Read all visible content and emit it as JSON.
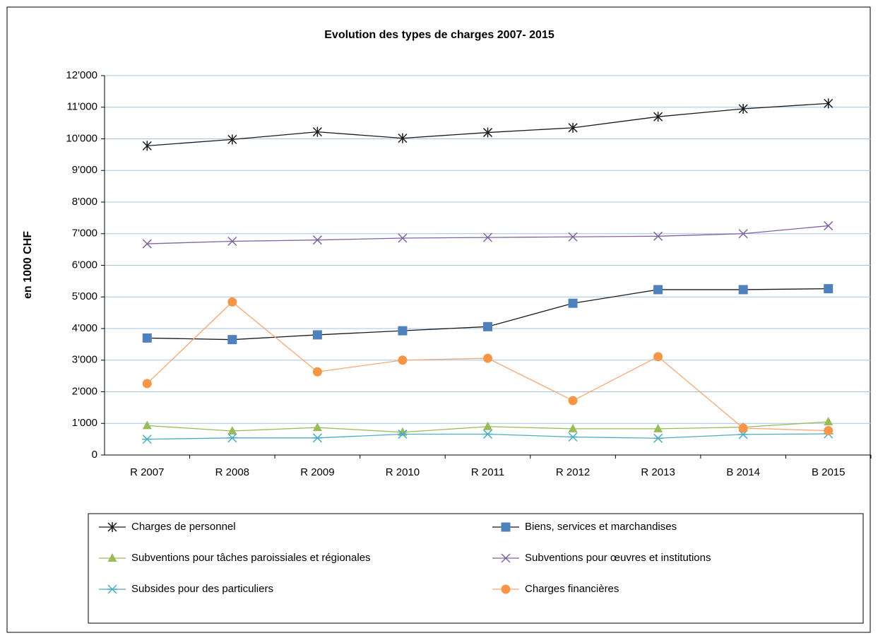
{
  "chart_data": {
    "type": "line",
    "title": "Evolution des types de charges 2007- 2015",
    "y_label": "en 1000 CHF",
    "categories": [
      "R 2007",
      "R 2008",
      "R 2009",
      "R 2010",
      "R 2011",
      "R 2012",
      "R 2013",
      "B 2014",
      "B 2015"
    ],
    "series": [
      {
        "name": "Charges de personnel",
        "color": "#1a1a1a",
        "line_color": "#1a1a1a",
        "marker": "asterisk",
        "values": [
          9780,
          9980,
          10220,
          10020,
          10200,
          10350,
          10700,
          10950,
          11120
        ]
      },
      {
        "name": "Biens, services et marchandises",
        "color": "#4f81bd",
        "line_color": "#1a1a1a",
        "marker": "square",
        "values": [
          3700,
          3650,
          3800,
          3930,
          4060,
          4800,
          5230,
          5230,
          5260
        ]
      },
      {
        "name": "Subventions pour tâches paroissiales et régionales",
        "color": "#9bbb59",
        "line_color": "#9bbb59",
        "marker": "triangle",
        "values": [
          930,
          760,
          870,
          720,
          900,
          830,
          830,
          880,
          1050
        ]
      },
      {
        "name": "Subventions pour œuvres et institutions",
        "color": "#8064a2",
        "line_color": "#8064a2",
        "marker": "x",
        "values": [
          6680,
          6760,
          6800,
          6860,
          6880,
          6900,
          6920,
          7000,
          7250
        ]
      },
      {
        "name": "Subsides pour des particuliers",
        "color": "#4bacc6",
        "line_color": "#4bacc6",
        "marker": "star",
        "values": [
          500,
          540,
          540,
          660,
          660,
          570,
          530,
          650,
          670
        ]
      },
      {
        "name": "Charges financières",
        "color": "#f79646",
        "line_color": "#f4a874",
        "marker": "circle",
        "values": [
          2260,
          4840,
          2630,
          3000,
          3060,
          1720,
          3110,
          850,
          770
        ]
      }
    ],
    "ylim": [
      0,
      12000
    ],
    "yticks": [
      0,
      {
        "value": 1000,
        "label": "1'000"
      },
      {
        "value": 2000,
        "label": "2'000"
      },
      {
        "value": 3000,
        "label": "3'000"
      },
      {
        "value": 4000,
        "label": "4'000"
      },
      {
        "value": 5000,
        "label": "5'000"
      },
      {
        "value": 6000,
        "label": "6'000"
      },
      {
        "value": 7000,
        "label": "7'000"
      },
      {
        "value": 8000,
        "label": "8'000"
      },
      {
        "value": 9000,
        "label": "9'000"
      },
      {
        "value": 10000,
        "label": "10'000"
      },
      {
        "value": 11000,
        "label": "11'000"
      },
      {
        "value": 12000,
        "label": "12'000"
      }
    ],
    "grid": true,
    "grid_color": "#a6c3e0",
    "legend": "bottom"
  }
}
